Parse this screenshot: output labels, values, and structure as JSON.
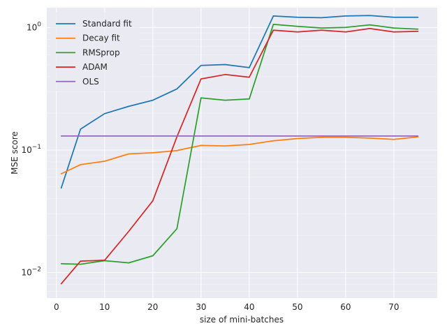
{
  "chart_data": {
    "type": "line",
    "xlabel": "size of mini-batches",
    "ylabel": "MSE score",
    "xlim": [
      -2,
      79
    ],
    "ylim": [
      0.0062,
      1.45
    ],
    "yscale": "log",
    "grid": true,
    "legend_position": "top-left",
    "x_ticks": [
      0,
      10,
      20,
      30,
      40,
      50,
      60,
      70
    ],
    "x_tick_labels": [
      "0",
      "10",
      "20",
      "30",
      "40",
      "50",
      "60",
      "70"
    ],
    "y_ticks": [
      0.01,
      0.1,
      1
    ],
    "y_tick_labels": [
      {
        "base": "10",
        "exp": "−2"
      },
      {
        "base": "10",
        "exp": "−1"
      },
      {
        "base": "10",
        "exp": "0"
      }
    ],
    "x": [
      1,
      5,
      10,
      15,
      20,
      25,
      30,
      35,
      40,
      45,
      50,
      55,
      60,
      65,
      70,
      75
    ],
    "series": [
      {
        "name": "Standard fit",
        "color": "#1f77b4",
        "values": [
          0.049,
          0.148,
          0.198,
          0.227,
          0.255,
          0.315,
          0.49,
          0.498,
          0.47,
          1.24,
          1.21,
          1.2,
          1.24,
          1.25,
          1.21,
          1.21
        ]
      },
      {
        "name": "Decay fit",
        "color": "#ff7f0e",
        "values": [
          0.064,
          0.076,
          0.081,
          0.093,
          0.095,
          0.099,
          0.109,
          0.108,
          0.111,
          0.119,
          0.124,
          0.127,
          0.127,
          0.125,
          0.122,
          0.128
        ]
      },
      {
        "name": "RMSprop",
        "color": "#2ca02c",
        "values": [
          0.0118,
          0.0117,
          0.0125,
          0.012,
          0.0137,
          0.0228,
          0.266,
          0.255,
          0.261,
          1.06,
          1.02,
          0.99,
          1.0,
          1.05,
          0.99,
          0.97
        ]
      },
      {
        "name": "ADAM",
        "color": "#d62728",
        "values": [
          0.0081,
          0.0124,
          0.0126,
          0.0217,
          0.0385,
          0.128,
          0.38,
          0.413,
          0.393,
          0.95,
          0.92,
          0.95,
          0.92,
          0.98,
          0.92,
          0.93
        ]
      },
      {
        "name": "OLS",
        "color": "#9467bd",
        "values": [
          0.13,
          0.13,
          0.13,
          0.13,
          0.13,
          0.13,
          0.13,
          0.13,
          0.13,
          0.13,
          0.13,
          0.13,
          0.13,
          0.13,
          0.13,
          0.13
        ]
      }
    ]
  }
}
